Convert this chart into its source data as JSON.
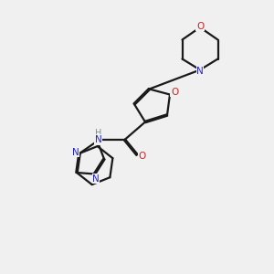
{
  "bg_color": "#f0f0f0",
  "bond_color": "#1a1a1a",
  "N_color": "#2222cc",
  "O_color": "#cc2222",
  "H_color": "#7090a0",
  "line_width": 1.6,
  "dbo": 0.025,
  "figsize": [
    3.0,
    3.0
  ],
  "dpi": 100,
  "xlim": [
    0,
    10
  ],
  "ylim": [
    0,
    10
  ]
}
